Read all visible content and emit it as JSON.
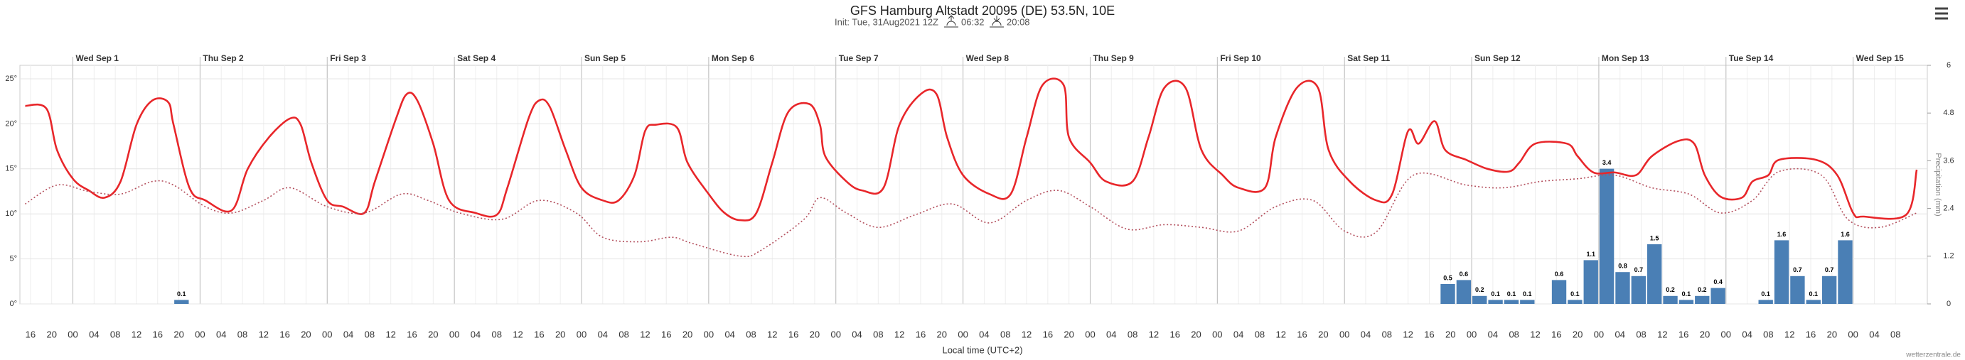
{
  "chart_data": {
    "type": "line",
    "title": "GFS Hamburg Altstadt 20095 (DE) 53.5N, 10E",
    "subtitle": "Init: Tue, 31Aug2021 12Z",
    "sunrise": "06:32",
    "sunset": "20:08",
    "x_label": "Local time (UTC+2)",
    "y2_label": "Precipitation (mm)",
    "credit": "wetterzentrale.de",
    "grid": true,
    "xlim": [
      14,
      374
    ],
    "ylim": [
      0,
      26.5
    ],
    "y2lim": [
      0,
      6
    ],
    "yticks": [
      {
        "value": 0,
        "label": "0°"
      },
      {
        "value": 5,
        "label": "5°"
      },
      {
        "value": 10,
        "label": "10°"
      },
      {
        "value": 15,
        "label": "15°"
      },
      {
        "value": 20,
        "label": "20°"
      },
      {
        "value": 25,
        "label": "25°"
      }
    ],
    "y2ticks": [
      0,
      1.2,
      2.4,
      3.6,
      4.8,
      6
    ],
    "day_ticks": [
      {
        "value": 24,
        "label": "Wed Sep 1"
      },
      {
        "value": 48,
        "label": "Thu Sep 2"
      },
      {
        "value": 72,
        "label": "Fri Sep 3"
      },
      {
        "value": 96,
        "label": "Sat Sep 4"
      },
      {
        "value": 120,
        "label": "Sun Sep 5"
      },
      {
        "value": 144,
        "label": "Mon Sep 6"
      },
      {
        "value": 168,
        "label": "Tue Sep 7"
      },
      {
        "value": 192,
        "label": "Wed Sep 8"
      },
      {
        "value": 216,
        "label": "Thu Sep 9"
      },
      {
        "value": 240,
        "label": "Fri Sep 10"
      },
      {
        "value": 264,
        "label": "Sat Sep 11"
      },
      {
        "value": 288,
        "label": "Sun Sep 12"
      },
      {
        "value": 312,
        "label": "Mon Sep 13"
      },
      {
        "value": 336,
        "label": "Tue Sep 14"
      },
      {
        "value": 360,
        "label": "Wed Sep 15"
      }
    ],
    "xticks": [
      {
        "value": 16,
        "label": "16"
      },
      {
        "value": 20,
        "label": "20"
      },
      {
        "value": 24,
        "label": "00"
      },
      {
        "value": 28,
        "label": "04"
      },
      {
        "value": 32,
        "label": "08"
      },
      {
        "value": 36,
        "label": "12"
      },
      {
        "value": 40,
        "label": "16"
      },
      {
        "value": 44,
        "label": "20"
      },
      {
        "value": 48,
        "label": "00"
      },
      {
        "value": 52,
        "label": "04"
      },
      {
        "value": 56,
        "label": "08"
      },
      {
        "value": 60,
        "label": "12"
      },
      {
        "value": 64,
        "label": "16"
      },
      {
        "value": 68,
        "label": "20"
      },
      {
        "value": 72,
        "label": "00"
      },
      {
        "value": 76,
        "label": "04"
      },
      {
        "value": 80,
        "label": "08"
      },
      {
        "value": 84,
        "label": "12"
      },
      {
        "value": 88,
        "label": "16"
      },
      {
        "value": 92,
        "label": "20"
      },
      {
        "value": 96,
        "label": "00"
      },
      {
        "value": 100,
        "label": "04"
      },
      {
        "value": 104,
        "label": "08"
      },
      {
        "value": 108,
        "label": "12"
      },
      {
        "value": 112,
        "label": "16"
      },
      {
        "value": 116,
        "label": "20"
      },
      {
        "value": 120,
        "label": "00"
      },
      {
        "value": 124,
        "label": "04"
      },
      {
        "value": 128,
        "label": "08"
      },
      {
        "value": 132,
        "label": "12"
      },
      {
        "value": 136,
        "label": "16"
      },
      {
        "value": 140,
        "label": "20"
      },
      {
        "value": 144,
        "label": "00"
      },
      {
        "value": 148,
        "label": "04"
      },
      {
        "value": 152,
        "label": "08"
      },
      {
        "value": 156,
        "label": "12"
      },
      {
        "value": 160,
        "label": "16"
      },
      {
        "value": 164,
        "label": "20"
      },
      {
        "value": 168,
        "label": "00"
      },
      {
        "value": 172,
        "label": "04"
      },
      {
        "value": 176,
        "label": "08"
      },
      {
        "value": 180,
        "label": "12"
      },
      {
        "value": 184,
        "label": "16"
      },
      {
        "value": 188,
        "label": "20"
      },
      {
        "value": 192,
        "label": "00"
      },
      {
        "value": 196,
        "label": "04"
      },
      {
        "value": 200,
        "label": "08"
      },
      {
        "value": 204,
        "label": "12"
      },
      {
        "value": 208,
        "label": "16"
      },
      {
        "value": 212,
        "label": "20"
      },
      {
        "value": 216,
        "label": "00"
      },
      {
        "value": 220,
        "label": "04"
      },
      {
        "value": 224,
        "label": "08"
      },
      {
        "value": 228,
        "label": "12"
      },
      {
        "value": 232,
        "label": "16"
      },
      {
        "value": 236,
        "label": "20"
      },
      {
        "value": 240,
        "label": "00"
      },
      {
        "value": 244,
        "label": "04"
      },
      {
        "value": 248,
        "label": "08"
      },
      {
        "value": 252,
        "label": "12"
      },
      {
        "value": 256,
        "label": "16"
      },
      {
        "value": 260,
        "label": "20"
      },
      {
        "value": 264,
        "label": "00"
      },
      {
        "value": 268,
        "label": "04"
      },
      {
        "value": 272,
        "label": "08"
      },
      {
        "value": 276,
        "label": "12"
      },
      {
        "value": 280,
        "label": "16"
      },
      {
        "value": 284,
        "label": "20"
      },
      {
        "value": 288,
        "label": "00"
      },
      {
        "value": 292,
        "label": "04"
      },
      {
        "value": 296,
        "label": "08"
      },
      {
        "value": 300,
        "label": "12"
      },
      {
        "value": 304,
        "label": "16"
      },
      {
        "value": 308,
        "label": "20"
      },
      {
        "value": 312,
        "label": "00"
      },
      {
        "value": 316,
        "label": "04"
      },
      {
        "value": 320,
        "label": "08"
      },
      {
        "value": 324,
        "label": "12"
      },
      {
        "value": 328,
        "label": "16"
      },
      {
        "value": 332,
        "label": "20"
      },
      {
        "value": 336,
        "label": "00"
      },
      {
        "value": 340,
        "label": "04"
      },
      {
        "value": 344,
        "label": "08"
      },
      {
        "value": 348,
        "label": "12"
      },
      {
        "value": 352,
        "label": "16"
      },
      {
        "value": 356,
        "label": "20"
      },
      {
        "value": 360,
        "label": "00"
      },
      {
        "value": 364,
        "label": "04"
      },
      {
        "value": 368,
        "label": "08"
      }
    ],
    "series": [
      {
        "type": "line",
        "style": "solid",
        "color": "#e8262a",
        "x": [
          15,
          19,
          21,
          24,
          27,
          30,
          33,
          36,
          39,
          42,
          43,
          46,
          49,
          54,
          57,
          61,
          65,
          67,
          69,
          72,
          75,
          79,
          81,
          85,
          87,
          89,
          92,
          95,
          100,
          104,
          106,
          110,
          112,
          114,
          117,
          120,
          124,
          127,
          130,
          132,
          134,
          138,
          140,
          144,
          147,
          150,
          153,
          156,
          159,
          163,
          165,
          166,
          170,
          173,
          177,
          180,
          184,
          187,
          189,
          192,
          197,
          201,
          204,
          207,
          211,
          212,
          216,
          219,
          224,
          227,
          230,
          234,
          237,
          241,
          244,
          249,
          251,
          255,
          259,
          261,
          265,
          270,
          273,
          276,
          278,
          281,
          283,
          287,
          291,
          295,
          297,
          300,
          306,
          308,
          311,
          315,
          319,
          322,
          327,
          330,
          332,
          335,
          339,
          341,
          344,
          346,
          353,
          357,
          360,
          362,
          370,
          372
        ],
        "values": [
          22,
          21.7,
          17.1,
          13.9,
          12.6,
          11.8,
          13.6,
          19.9,
          22.6,
          22.4,
          19.9,
          12.9,
          11.5,
          10.4,
          15,
          18.5,
          20.6,
          19.9,
          15.7,
          11.5,
          10.8,
          10.1,
          13.6,
          20.6,
          23.3,
          22.6,
          17.8,
          11.5,
          10.1,
          9.9,
          12.9,
          20.6,
          22.6,
          21.9,
          17.1,
          12.9,
          11.5,
          11.5,
          14.3,
          19.2,
          19.9,
          19.6,
          15.7,
          12.2,
          10.1,
          9.3,
          10.1,
          15.7,
          21.3,
          22.2,
          19.9,
          16.4,
          13.6,
          12.6,
          12.9,
          19.9,
          23.3,
          23.3,
          18.5,
          14.3,
          12.2,
          12.2,
          18.5,
          24.3,
          24.3,
          18.5,
          15.7,
          13.6,
          13.6,
          18.5,
          24,
          24,
          17.1,
          14.3,
          12.9,
          12.9,
          18.5,
          24,
          24,
          17.1,
          13.6,
          11.5,
          12.2,
          19.2,
          17.8,
          20.3,
          17.1,
          16,
          15,
          14.7,
          15.7,
          17.8,
          17.8,
          16.4,
          14.6,
          14.6,
          14.3,
          16.4,
          18.1,
          17.8,
          14.3,
          11.9,
          11.8,
          13.6,
          14.3,
          16,
          16,
          14.3,
          10.1,
          9.7,
          9.9,
          14.9
        ]
      },
      {
        "type": "line",
        "style": "dotted",
        "color": "#b4505e",
        "x": [
          15,
          21,
          27,
          33,
          39,
          43,
          49,
          54,
          60,
          65,
          72,
          79,
          86,
          91,
          97,
          105,
          112,
          119,
          124,
          131,
          137,
          141,
          150,
          154,
          162,
          165,
          170,
          176,
          183,
          190,
          197,
          204,
          210,
          216,
          223,
          230,
          237,
          244,
          251,
          258,
          264,
          270,
          277,
          287,
          294,
          301,
          308,
          315,
          322,
          329,
          335,
          341,
          346,
          354,
          359,
          365,
          372
        ],
        "values": [
          11.1,
          13.2,
          12.5,
          12.2,
          13.6,
          13.2,
          10.8,
          10.1,
          11.5,
          12.9,
          10.8,
          10.1,
          12.2,
          11.5,
          10.1,
          9.4,
          11.5,
          10.1,
          7.4,
          6.9,
          7.4,
          6.7,
          5.3,
          6,
          9.4,
          11.8,
          10.1,
          8.5,
          9.9,
          11.1,
          9,
          11.5,
          12.6,
          10.8,
          8.3,
          8.8,
          8.5,
          8.1,
          10.8,
          11.5,
          8.1,
          8,
          14.3,
          13.2,
          12.9,
          13.6,
          13.9,
          14.3,
          12.9,
          12.2,
          10.1,
          11.5,
          14.7,
          14.3,
          9.4,
          8.5,
          10.1
        ]
      },
      {
        "type": "bar",
        "axis": "y2",
        "color": "#4a7fb5",
        "x": [
          44.5,
          283.5,
          286.5,
          289.5,
          292.5,
          295.5,
          298.5,
          304.5,
          307.5,
          310.5,
          313.5,
          316.5,
          319.5,
          322.5,
          325.5,
          328.5,
          331.5,
          334.5,
          343.5,
          346.5,
          349.5,
          352.5,
          355.5,
          358.5
        ],
        "values": [
          0.1,
          0.5,
          0.6,
          0.2,
          0.1,
          0.1,
          0.1,
          0.6,
          0.1,
          1.1,
          3.4,
          0.8,
          0.7,
          1.5,
          0.2,
          0.1,
          0.2,
          0.4,
          0.1,
          1.6,
          0.7,
          0.1,
          0.7,
          1.6
        ]
      }
    ]
  }
}
